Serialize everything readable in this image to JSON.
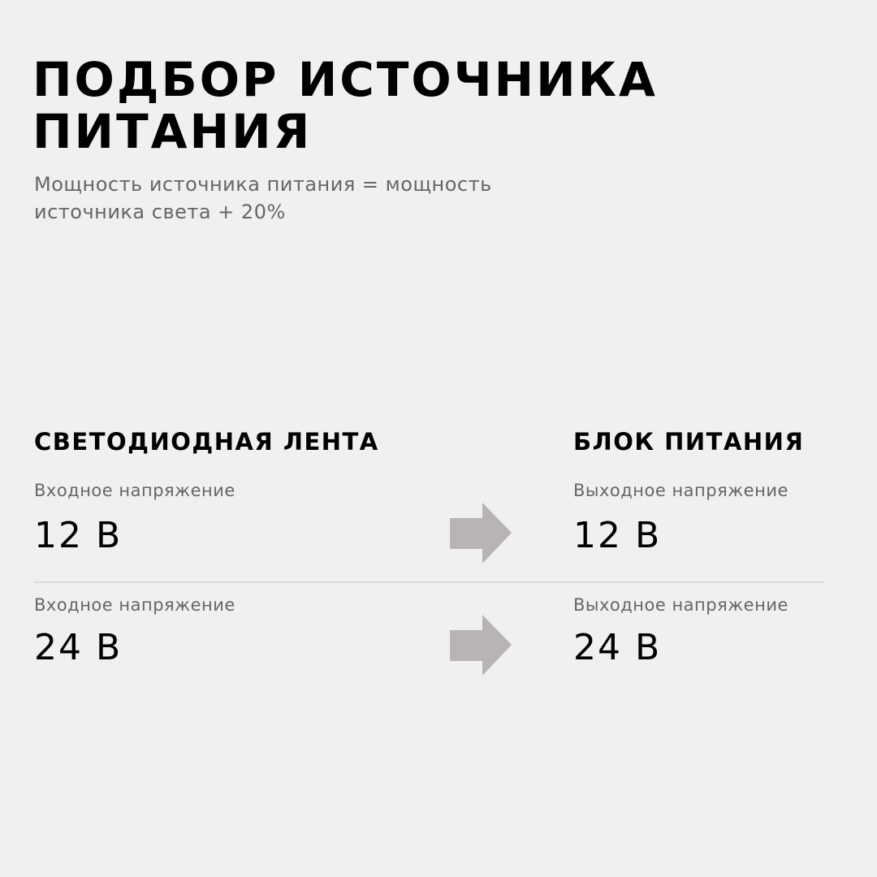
{
  "header": {
    "title": "ПОДБОР ИСТОЧНИКА ПИТАНИЯ",
    "subtitle": "Мощность источника питания = мощность источника света + 20%"
  },
  "columns": {
    "left_heading": "СВЕТОДИОДНАЯ ЛЕНТА",
    "right_heading": "БЛОК ПИТАНИЯ"
  },
  "rows": [
    {
      "left_label": "Входное напряжение",
      "left_value": "12 В",
      "right_label": "Выходное напряжение",
      "right_value": "12 В"
    },
    {
      "left_label": "Входное напряжение",
      "left_value": "24 В",
      "right_label": "Выходное напряжение",
      "right_value": "24 В"
    }
  ],
  "icons": {
    "arrow": "arrow-right-icon"
  },
  "colors": {
    "background": "#f0f0f0",
    "arrow": "#b8b4b4",
    "text": "#000000",
    "muted_text": "#666666"
  }
}
